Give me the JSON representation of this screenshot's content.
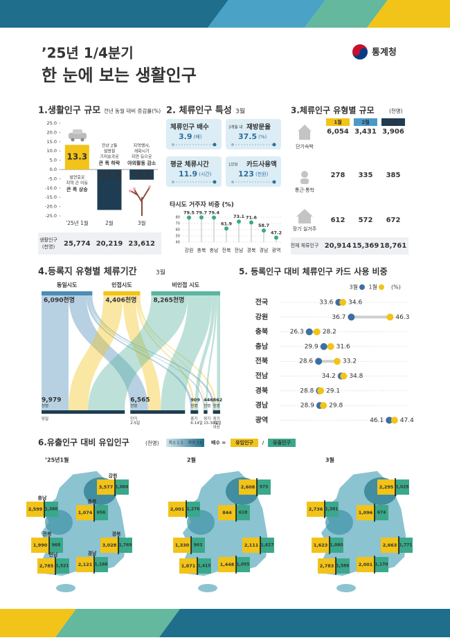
{
  "header": {
    "period": "’25년 1/4분기",
    "title": "한 눈에 보는 생활인구",
    "org": "통계청"
  },
  "section2": {
    "title": "2. 체류인구 특성",
    "period": "3월",
    "cards": [
      {
        "label": "체류인구 배수",
        "value": "3.9",
        "unit": "(배)"
      },
      {
        "prefix": "3개월 내",
        "label": "재방문율",
        "value": "37.5",
        "unit": "(%)"
      },
      {
        "label": "평균 체류시간",
        "value": "11.9",
        "unit": "(시간)"
      },
      {
        "prefix": "1인당",
        "label": "카드사용액",
        "value": "123",
        "unit": "(천원)"
      }
    ]
  },
  "section3": {
    "title": "3.체류인구 유형별 규모",
    "unit": "(천명)",
    "columns": [
      "1월",
      "2월",
      "3월"
    ],
    "column_colors": [
      "#f2c318",
      "#4a9ac9",
      "#1f3d52"
    ],
    "rows": [
      {
        "label": "단기숙박",
        "values": [
          "6,054",
          "3,431",
          "3,906"
        ]
      },
      {
        "label": "통근·통학",
        "values": [
          "278",
          "335",
          "385"
        ]
      },
      {
        "label": "장기 실거주",
        "values": [
          "612",
          "572",
          "672"
        ]
      },
      {
        "label": "전체 체류인구",
        "values": [
          "20,914",
          "15,369",
          "18,761"
        ]
      }
    ]
  },
  "section6": {
    "title": "6.유출인구 대비 유입인구",
    "unit": "(천명)",
    "scale": [
      "최소 1.3",
      "최대 3.6"
    ],
    "formula": [
      "배수 =",
      "유입인구",
      "/",
      "유출인구"
    ],
    "regions": [
      "강원",
      "충북",
      "충남",
      "경북",
      "전북",
      "전남",
      "경남"
    ],
    "maps": [
      {
        "label": "’25년1월",
        "inflow": [
          "3,577",
          "1,074",
          "2,599",
          "3,028",
          "1,990",
          "2,785",
          "2,121"
        ],
        "outflow": [
          "1,004",
          "656",
          "1,360",
          "1,769",
          "968",
          "1,521",
          "1,168"
        ]
      },
      {
        "label": "2월",
        "inflow": [
          "2,608",
          "844",
          "2,001",
          "2,111",
          "1,330",
          "1,871",
          "1,448"
        ],
        "outflow": [
          "975",
          "618",
          "1,276",
          "1,627",
          "903",
          "1,415",
          "1,055"
        ]
      },
      {
        "label": "3월",
        "inflow": [
          "2,295",
          "1,096",
          "2,736",
          "2,663",
          "1,623",
          "2,783",
          "2,001"
        ],
        "outflow": [
          "1,029",
          "674",
          "1,381",
          "1,771",
          "1,080",
          "1,586",
          "1,170"
        ]
      }
    ]
  },
  "chart_data": [
    {
      "type": "bar",
      "title": "1.생활인구 규모",
      "subtitle": "전년 동월 대비 증감률(%)",
      "categories": [
        "’25년 1월",
        "2월",
        "3월"
      ],
      "values": [
        13.3,
        -21.8,
        -5.5
      ],
      "colors": [
        "#f2c318",
        "#1f3d52",
        "#1f3d52"
      ],
      "ylim": [
        -25,
        25
      ],
      "yticks": [
        {
          "value": 25,
          "label": "25.0"
        },
        {
          "value": 20,
          "label": "20.0"
        },
        {
          "value": 15,
          "label": "15.0"
        },
        {
          "value": 10,
          "label": "10.0"
        },
        {
          "value": 5,
          "label": "5.0"
        },
        {
          "value": 0,
          "label": "0.0"
        },
        {
          "value": -5,
          "label": "-5.0"
        },
        {
          "value": -10,
          "label": "-10.0"
        },
        {
          "value": -15,
          "label": "-15.0"
        },
        {
          "value": -20,
          "label": "-20.0"
        },
        {
          "value": -25,
          "label": "-25.0"
        }
      ],
      "annotations": [
        {
          "lines": [
            "설연휴로",
            "지역 간 이동"
          ],
          "emphasis": "큰 폭 상승",
          "emphasis_color": "#e03a3a"
        },
        {
          "lines": [
            "전년 2월",
            "설명절",
            "기저효과로"
          ],
          "emphasis": "큰 폭 하락",
          "emphasis_color": "#e03a3a"
        },
        {
          "lines": [
            "지역행사,",
            "개화시기",
            "지연 등으로"
          ],
          "emphasis": "야외활동 감소",
          "emphasis_color": "#2f7fc1"
        }
      ],
      "table": {
        "label": [
          "생활인구",
          "(천명)"
        ],
        "values": [
          "25,774",
          "20,219",
          "23,612"
        ]
      }
    },
    {
      "type": "lollipop",
      "title": "타시도 거주자 비중 (%)",
      "categories": [
        "강원",
        "충북",
        "충남",
        "전북",
        "전남",
        "경북",
        "경남",
        "광역"
      ],
      "values": [
        79.5,
        79.7,
        79.4,
        61.9,
        73.1,
        71.6,
        58.7,
        47.2
      ],
      "color": "#3aa88a",
      "ylim": [
        40,
        80
      ],
      "yticks": [
        40,
        50,
        60,
        70,
        80
      ]
    },
    {
      "type": "sankey",
      "title": "4.등록지 유형별 체류기간",
      "subtitle": "3월",
      "sources": {
        "names": [
          "동일시도",
          "인접시도",
          "비인접 시도"
        ],
        "values": [
          6090,
          4406,
          8265
        ],
        "value_labels": [
          "6,090천명",
          "4,406천명",
          "8,265천명"
        ],
        "colors": [
          "#4b8db8",
          "#f2c318",
          "#5bb5a0"
        ]
      },
      "targets": {
        "names": [
          "당일",
          "단기 2-5일",
          "중기 6-14일",
          "장기 15-30일",
          "장기 31일 이상"
        ],
        "values": [
          9979,
          6565,
          909,
          446,
          862
        ],
        "value_labels": [
          "9,979",
          "6,565",
          "909",
          "446",
          "862"
        ],
        "unit": "천명",
        "color": "#1f3d52"
      }
    },
    {
      "type": "dumbbell",
      "title": "5. 등록인구 대비 체류인구 카드 사용 비중",
      "unit": "(%)",
      "categories": [
        "전국",
        "강원",
        "충북",
        "충남",
        "전북",
        "전남",
        "경북",
        "경남",
        "광역"
      ],
      "series": [
        {
          "name": "3월",
          "color": "#3d6fa0",
          "values": [
            33.6,
            36.7,
            26.3,
            29.9,
            28.6,
            34.2,
            28.8,
            28.9,
            46.1
          ]
        },
        {
          "name": "1월",
          "color": "#f2c318",
          "values": [
            34.6,
            46.3,
            28.2,
            31.6,
            33.2,
            34.8,
            29.1,
            29.8,
            47.4
          ]
        }
      ],
      "xlim": [
        20,
        50
      ]
    }
  ]
}
